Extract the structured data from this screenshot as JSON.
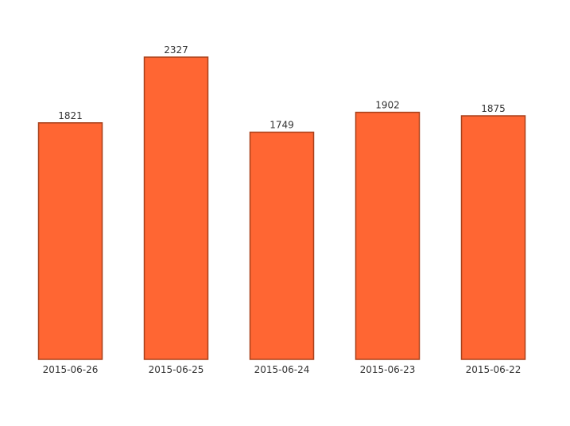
{
  "chart_data": {
    "type": "bar",
    "categories": [
      "2015-06-26",
      "2015-06-25",
      "2015-06-24",
      "2015-06-23",
      "2015-06-22"
    ],
    "values": [
      1821,
      2327,
      1749,
      1902,
      1875
    ],
    "color": "#ff6633"
  }
}
